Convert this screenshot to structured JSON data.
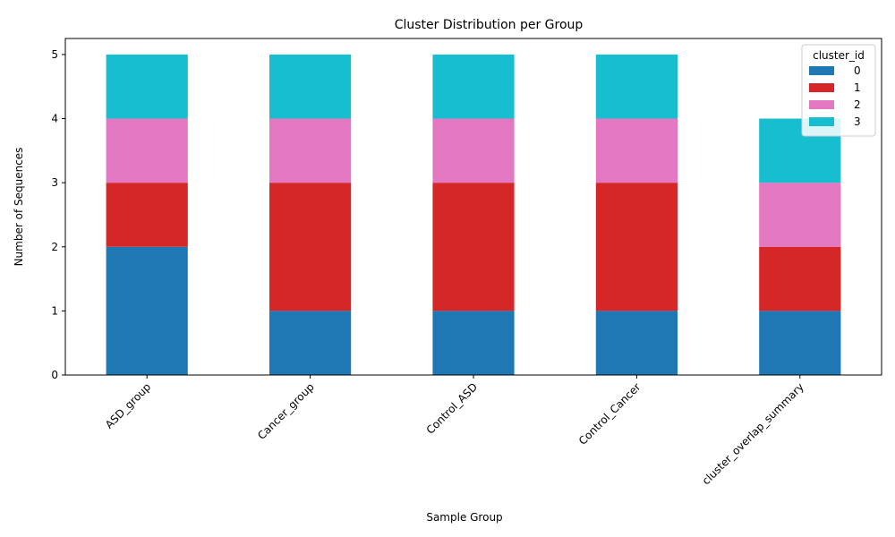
{
  "chart_data": {
    "type": "bar",
    "stacked": true,
    "title": "Cluster Distribution per Group",
    "xlabel": "Sample Group",
    "ylabel": "Number of Sequences",
    "ylim": [
      0,
      5.25
    ],
    "yticks": [
      0,
      1,
      2,
      3,
      4,
      5
    ],
    "categories": [
      "ASD_group",
      "Cancer_group",
      "Control_ASD",
      "Control_Cancer",
      "cluster_overlap_summary"
    ],
    "legend": {
      "title": "cluster_id",
      "position": "top-right"
    },
    "grid": false,
    "series": [
      {
        "name": "0",
        "color": "#1f77b4",
        "values": [
          2,
          1,
          1,
          1,
          1
        ]
      },
      {
        "name": "1",
        "color": "#d62728",
        "values": [
          1,
          2,
          2,
          2,
          1
        ]
      },
      {
        "name": "2",
        "color": "#e377c2",
        "values": [
          1,
          1,
          1,
          1,
          1
        ]
      },
      {
        "name": "3",
        "color": "#17becf",
        "values": [
          1,
          1,
          1,
          1,
          1
        ]
      }
    ]
  }
}
